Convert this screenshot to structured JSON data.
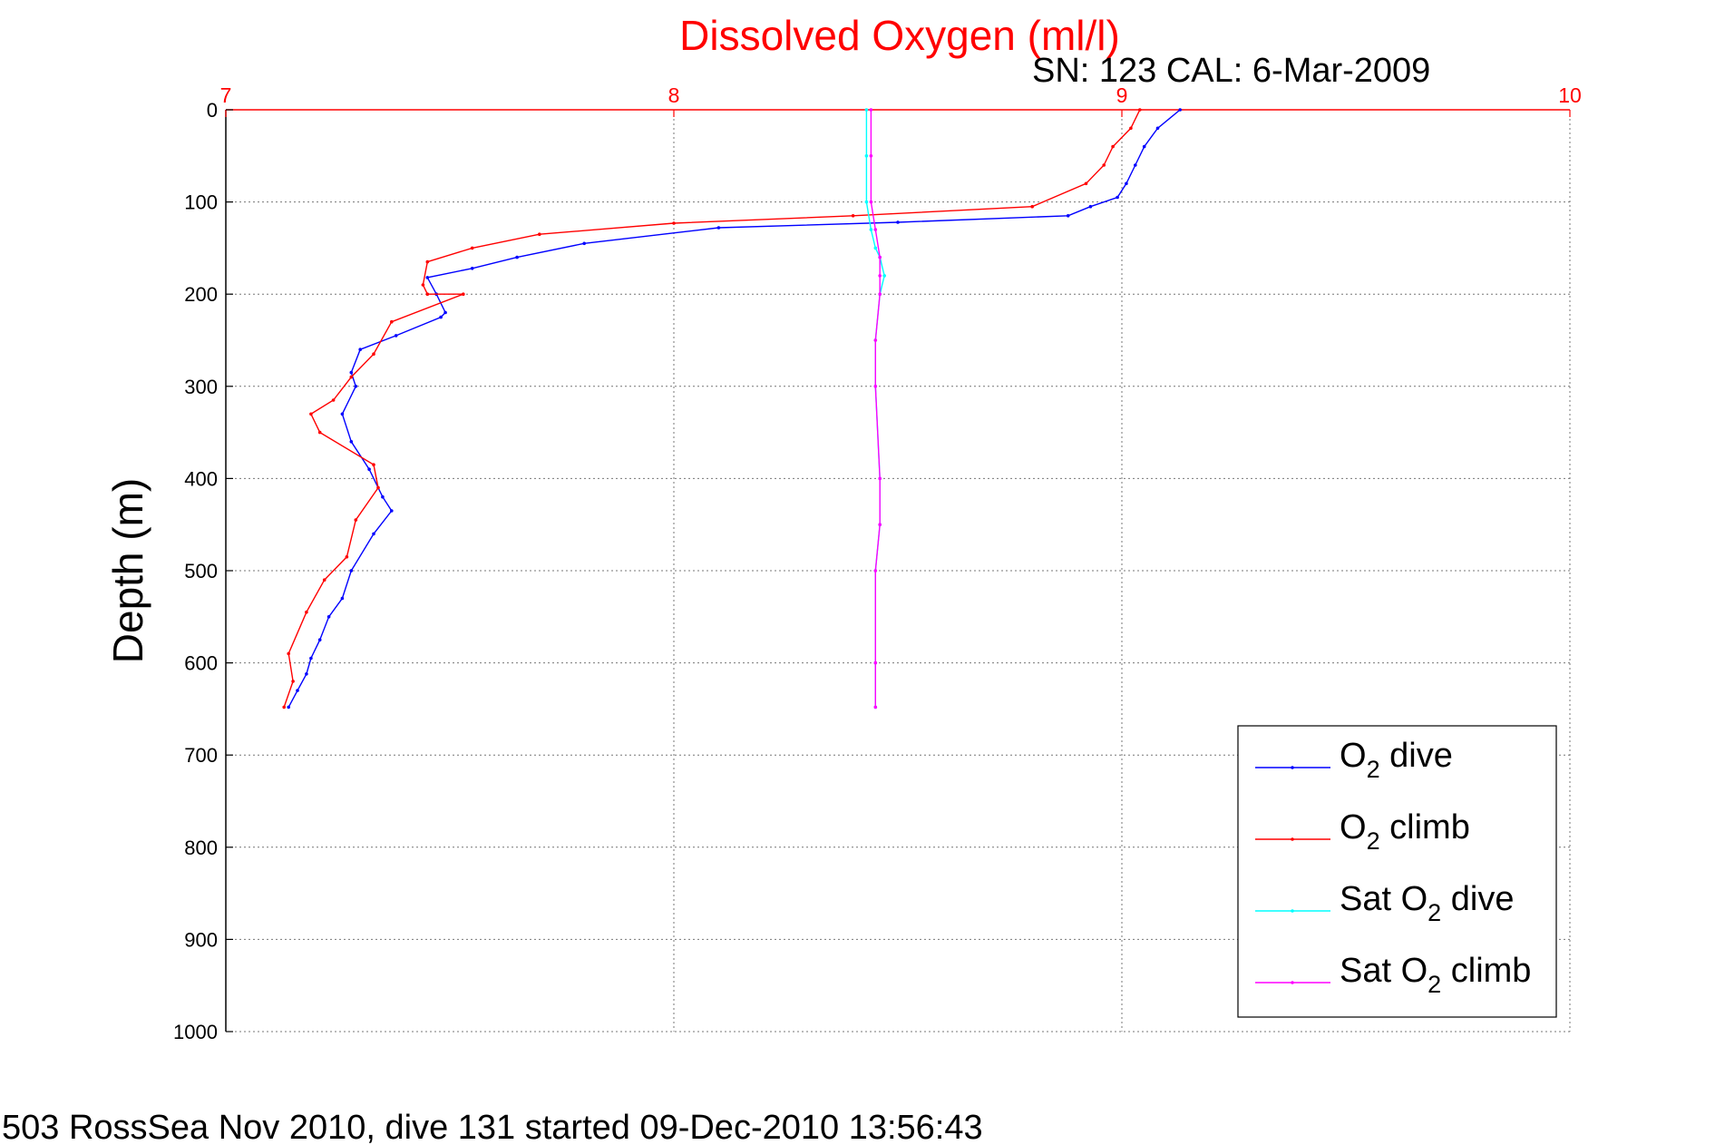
{
  "chart_data": {
    "type": "line",
    "title": "Dissolved Oxygen (ml/l)",
    "subtitle": "SN: 123  CAL: 6-Mar-2009",
    "xlabel": "",
    "ylabel": "Depth (m)",
    "xlim": [
      7,
      10
    ],
    "ylim": [
      0,
      1000
    ],
    "y_reversed": true,
    "x_axis_position": "top",
    "x_ticks": [
      "7",
      "8",
      "9",
      "10"
    ],
    "y_ticks": [
      "0",
      "100",
      "200",
      "300",
      "400",
      "500",
      "600",
      "700",
      "800",
      "900",
      "1000"
    ],
    "grid": true,
    "legend_position": "bottom-right",
    "colors": {
      "title": "#ff0000",
      "x_ticks": "#ff0000",
      "o2_dive": "#0000ff",
      "o2_climb": "#ff0000",
      "sat_o2_dive": "#00ffff",
      "sat_o2_climb": "#ff00ff"
    },
    "series": [
      {
        "name": "O2 dive",
        "legend": {
          "prefix": "O",
          "sub": "2",
          "suffix": " dive"
        },
        "color": "#0000ff",
        "x": [
          9.13,
          9.08,
          9.05,
          9.03,
          9.01,
          8.99,
          8.93,
          8.88,
          8.5,
          8.1,
          7.8,
          7.65,
          7.55,
          7.45,
          7.47,
          7.49,
          7.48,
          7.38,
          7.3,
          7.28,
          7.29,
          7.26,
          7.28,
          7.32,
          7.35,
          7.37,
          7.33,
          7.28,
          7.26,
          7.23,
          7.21,
          7.19,
          7.18,
          7.16,
          7.14
        ],
        "y": [
          0,
          20,
          40,
          60,
          80,
          95,
          105,
          115,
          122,
          128,
          145,
          160,
          172,
          182,
          200,
          220,
          225,
          245,
          260,
          285,
          300,
          330,
          360,
          390,
          420,
          435,
          460,
          500,
          530,
          550,
          575,
          595,
          612,
          630,
          648
        ]
      },
      {
        "name": "O2 climb",
        "legend": {
          "prefix": "O",
          "sub": "2",
          "suffix": " climb"
        },
        "color": "#ff0000",
        "x": [
          9.04,
          9.02,
          8.98,
          8.96,
          8.92,
          8.8,
          8.4,
          8.0,
          7.7,
          7.55,
          7.45,
          7.44,
          7.45,
          7.53,
          7.37,
          7.33,
          7.28,
          7.24,
          7.19,
          7.21,
          7.33,
          7.34,
          7.29,
          7.27,
          7.22,
          7.18,
          7.14,
          7.15,
          7.13
        ],
        "y": [
          0,
          20,
          40,
          60,
          80,
          105,
          115,
          123,
          135,
          150,
          165,
          190,
          200,
          200,
          230,
          265,
          290,
          315,
          330,
          350,
          385,
          410,
          445,
          485,
          510,
          545,
          590,
          620,
          648
        ]
      },
      {
        "name": "Sat O2 dive",
        "legend": {
          "prefix": "Sat O",
          "sub": "2",
          "suffix": " dive"
        },
        "color": "#00ffff",
        "x": [
          8.43,
          8.43,
          8.43,
          8.44,
          8.45,
          8.46,
          8.47,
          8.46,
          8.45,
          8.45,
          8.46,
          8.46,
          8.45,
          8.45,
          8.45
        ],
        "y": [
          0,
          50,
          100,
          130,
          150,
          160,
          180,
          200,
          250,
          300,
          400,
          450,
          500,
          600,
          648
        ]
      },
      {
        "name": "Sat O2 climb",
        "legend": {
          "prefix": "Sat O",
          "sub": "2",
          "suffix": " climb"
        },
        "color": "#ff00ff",
        "x": [
          8.44,
          8.44,
          8.44,
          8.45,
          8.46,
          8.46,
          8.46,
          8.45,
          8.45,
          8.46,
          8.46,
          8.45,
          8.45,
          8.45
        ],
        "y": [
          0,
          50,
          100,
          130,
          160,
          180,
          200,
          250,
          300,
          400,
          450,
          500,
          600,
          648
        ]
      }
    ]
  },
  "footer": "503 RossSea Nov 2010, dive 131 started 09-Dec-2010 13:56:43"
}
